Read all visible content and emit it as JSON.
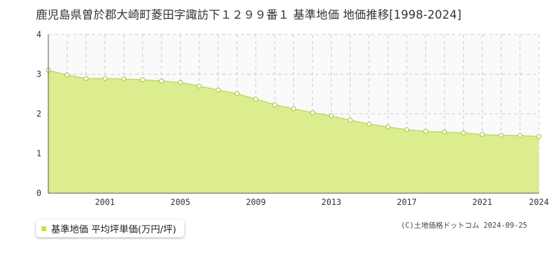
{
  "title": "鹿児島県曽於郡大崎町菱田字諏訪下１２９９番１ 基準地価 地価推移[1998-2024]",
  "legend": {
    "label": "基準地価 平均坪単価(万円/坪)"
  },
  "credit": "(C)土地価格ドットコム 2024-09-25",
  "colors": {
    "fill": "#dced8f",
    "line": "#b8d96a",
    "marker_fill": "#ffffff",
    "marker_stroke": "#aacb55",
    "grid": "#cccccc",
    "axis": "#555555"
  },
  "chart_data": {
    "type": "area",
    "x": [
      1998,
      1999,
      2000,
      2001,
      2002,
      2003,
      2004,
      2005,
      2006,
      2007,
      2008,
      2009,
      2010,
      2011,
      2012,
      2013,
      2014,
      2015,
      2016,
      2017,
      2018,
      2019,
      2020,
      2021,
      2022,
      2023,
      2024
    ],
    "series": [
      {
        "values": [
          3.1,
          2.98,
          2.89,
          2.89,
          2.88,
          2.86,
          2.83,
          2.79,
          2.7,
          2.6,
          2.51,
          2.37,
          2.23,
          2.13,
          2.03,
          1.95,
          1.84,
          1.74,
          1.67,
          1.6,
          1.56,
          1.54,
          1.52,
          1.48,
          1.46,
          1.45,
          1.43
        ]
      }
    ],
    "xlim": [
      1998,
      2024
    ],
    "ylim": [
      0,
      4
    ],
    "yticks": [
      "0",
      "1",
      "2",
      "3",
      "4"
    ],
    "xticks": [
      "2001",
      "2005",
      "2009",
      "2013",
      "2017",
      "2021",
      "2024"
    ],
    "grid": true
  }
}
